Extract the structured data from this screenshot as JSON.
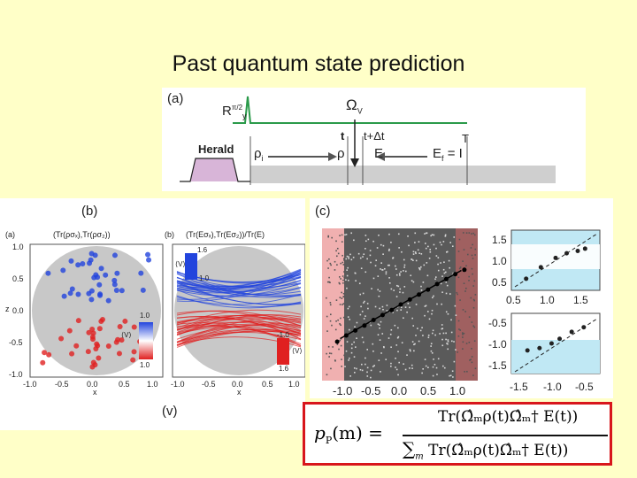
{
  "title": "Past quantum state prediction",
  "panel_a": {
    "label": "(a)",
    "pulse_label": "R",
    "pulse_sup": "π/2",
    "pulse_sub": "y",
    "omega_label": "Ω",
    "omega_sub": "V",
    "herald": "Herald",
    "rho_i": "ρ",
    "rho_i_sub": "i",
    "t_label": "t",
    "tdt_label": "t+Δt",
    "T_label": "T",
    "rho": "ρ",
    "E": "E",
    "Ef": "E",
    "Ef_sub": "f",
    "Ef_eq": "= I"
  },
  "panel_b": {
    "label": "(b)",
    "sub_a": "(a)",
    "sub_b": "(b)",
    "legend_a": "(Tr(ρσₓ),Tr(ρσ₂))",
    "legend_b": "(Tr(Eσₓ),Tr(Eσ₂))/Tr(E)",
    "xticks": [
      "-1.0",
      "-0.5",
      "0.0",
      "0.5",
      "1.0"
    ],
    "yticks_a": [
      "1.0",
      "0.5",
      "0.0",
      "-0.5",
      "-1.0"
    ],
    "xlabel": "x",
    "zlabel": "z",
    "cb_top": "1.0",
    "cb_bot": "1.0",
    "cb2_top": "1.6",
    "cb2_mid": "1.0",
    "cb2_bot": "-1.0",
    "cb2_low": "1.6",
    "v_label_1": "⟨V⟩",
    "v_label_2": "⟨V⟩",
    "footer": "(v)",
    "colors": {
      "blue": "#2244dd",
      "red": "#e02020",
      "disk": "#c8c8c8"
    }
  },
  "panel_c": {
    "label": "(c)",
    "xticks": [
      "-1.0",
      "-0.5",
      "0.0",
      "0.5",
      "1.0"
    ],
    "inset1_y": [
      "1.5",
      "1.0",
      "0.5"
    ],
    "inset1_x": [
      "0.5",
      "1.0",
      "1.5"
    ],
    "inset2_y": [
      "-0.5",
      "-1.0",
      "-1.5"
    ],
    "inset2_x": [
      "-1.5",
      "-1.0",
      "-0.5"
    ]
  },
  "chart_data": {
    "type": "scatter",
    "title": "",
    "xlabel": "",
    "ylabel": "",
    "xlim": [
      -1.3,
      1.3
    ],
    "trend_line": {
      "x": [
        -1.0,
        1.0
      ],
      "y": [
        -0.55,
        0.55
      ]
    },
    "binned_means": {
      "x": [
        -1.05,
        -0.9,
        -0.75,
        -0.6,
        -0.45,
        -0.3,
        -0.15,
        0.0,
        0.15,
        0.3,
        0.45,
        0.6,
        0.75,
        0.9,
        1.05
      ],
      "y": [
        -0.6,
        -0.5,
        -0.42,
        -0.34,
        -0.25,
        -0.17,
        -0.09,
        0.0,
        0.08,
        0.16,
        0.24,
        0.33,
        0.41,
        0.49,
        0.56
      ]
    },
    "insets": [
      {
        "x": [
          0.6,
          0.8,
          1.0,
          1.15,
          1.3,
          1.4
        ],
        "y": [
          0.55,
          0.8,
          1.0,
          1.1,
          1.15,
          1.2
        ]
      },
      {
        "x": [
          -1.4,
          -1.25,
          -1.1,
          -1.0,
          -0.85,
          -0.7
        ],
        "y": [
          -1.2,
          -1.15,
          -1.05,
          -0.95,
          -0.8,
          -0.7
        ]
      }
    ]
  },
  "formula": {
    "lhs_p": "p",
    "lhs_sub": "P",
    "lhs_arg": "(m) =",
    "num": "Tr(Ω̂ₘρ(t)Ω̂ₘ† E(t))",
    "den_sum": "∑",
    "den_sub": "m",
    "den": "Tr(Ω̂ₘρ(t)Ω̂ₘ† E(t))"
  }
}
